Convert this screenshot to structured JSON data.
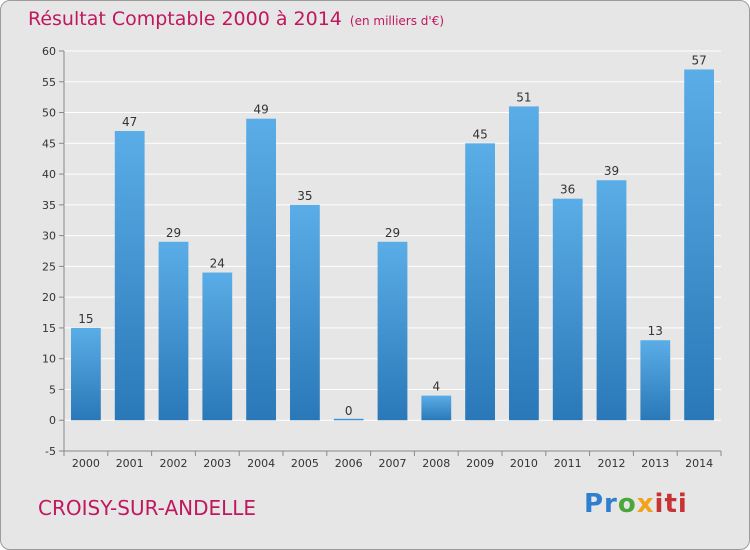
{
  "header": {
    "title": "Résultat Comptable 2000 à 2014",
    "subtitle": "(en milliers d'€)"
  },
  "footer": {
    "place": "CROISY-SUR-ANDELLE",
    "logo": [
      "Pr",
      "o",
      "x",
      "iti"
    ]
  },
  "colors": {
    "title": "#c0175f",
    "bar_top": "#5aade6",
    "bar_bottom": "#2a78b8",
    "background": "#e6e6e6",
    "grid": "#ffffff"
  },
  "chart_data": {
    "type": "bar",
    "title": "Résultat Comptable 2000 à 2014",
    "subtitle": "(en milliers d'€)",
    "categories": [
      "2000",
      "2001",
      "2002",
      "2003",
      "2004",
      "2005",
      "2006",
      "2007",
      "2008",
      "2009",
      "2010",
      "2011",
      "2012",
      "2013",
      "2014"
    ],
    "values": [
      15,
      47,
      29,
      24,
      49,
      35,
      0,
      29,
      4,
      45,
      51,
      36,
      39,
      13,
      57
    ],
    "ylim": [
      -5,
      60
    ],
    "yticks": [
      -5,
      0,
      5,
      10,
      15,
      20,
      25,
      30,
      35,
      40,
      45,
      50,
      55,
      60
    ],
    "grid": true
  }
}
